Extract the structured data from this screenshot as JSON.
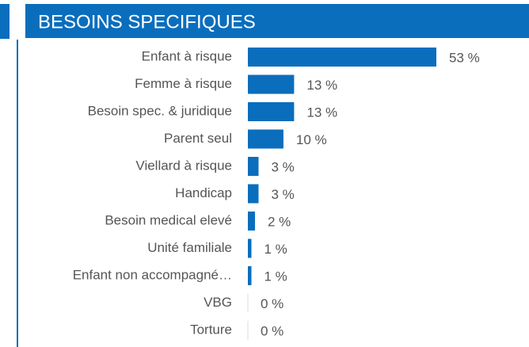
{
  "chart_data": {
    "type": "hbar",
    "title": "BESOINS SPECIFIQUES",
    "categories": [
      "Enfant à risque",
      "Femme à risque",
      "Besoin spec. & juridique",
      "Parent seul",
      "Viellard à risque",
      "Handicap",
      "Besoin medical elevé",
      "Unité familiale",
      "Enfant non accompagné…",
      "VBG",
      "Torture"
    ],
    "values": [
      53,
      13,
      13,
      10,
      3,
      3,
      2,
      1,
      1,
      0,
      0
    ],
    "value_labels": [
      "53 %",
      "13 %",
      "13 %",
      "10 %",
      "3 %",
      "3 %",
      "2 %",
      "1 %",
      "1 %",
      "0 %",
      "0 %"
    ],
    "color": "#0a6ebd"
  }
}
